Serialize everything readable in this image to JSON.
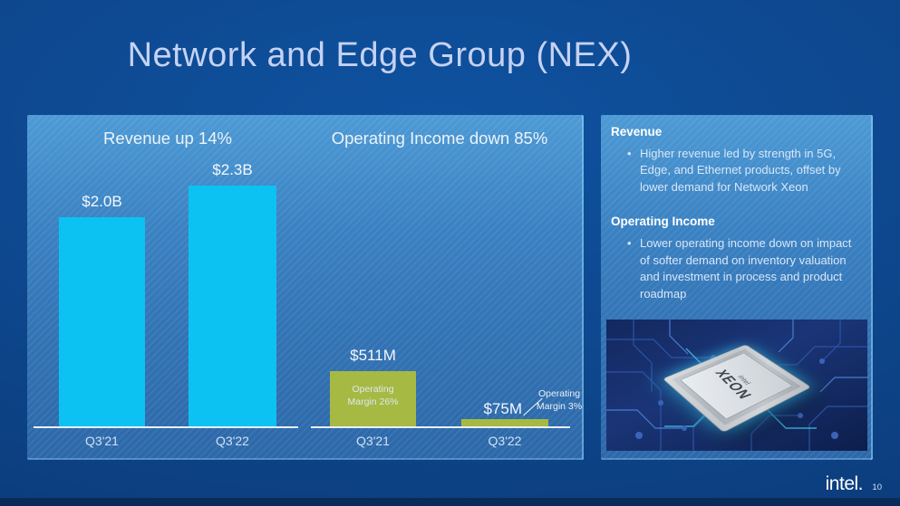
{
  "slide": {
    "title": "Network and Edge Group (NEX)",
    "logo_text": "intel.",
    "page_number": "10"
  },
  "chart_data": [
    {
      "type": "bar",
      "title": "Revenue up 14%",
      "categories": [
        "Q3'21",
        "Q3'22"
      ],
      "values": [
        2.0,
        2.3
      ],
      "unit": "USD billions",
      "value_labels": [
        "$2.0B",
        "$2.3B"
      ],
      "bar_color": "#0cc2f2",
      "ylim": [
        0,
        2.9
      ],
      "grid": false,
      "legend": false
    },
    {
      "type": "bar",
      "title": "Operating Income down 85%",
      "categories": [
        "Q3'21",
        "Q3'22"
      ],
      "values": [
        511,
        75
      ],
      "unit": "USD millions",
      "value_labels": [
        "$511M",
        "$75M"
      ],
      "margin_labels": [
        "Operating Margin 26%",
        "Operating Margin 3%"
      ],
      "bar_color": "#a6b942",
      "ylim": [
        0,
        2530
      ],
      "grid": false,
      "legend": false
    }
  ],
  "notes": {
    "sections": [
      {
        "heading": "Revenue",
        "bullet": "Higher revenue led by strength in 5G, Edge, and Ethernet products, offset by lower demand for Network Xeon"
      },
      {
        "heading": "Operating Income",
        "bullet": "Lower operating income down on impact of softer demand on inventory valuation and investment in process and product roadmap"
      }
    ],
    "image": {
      "description": "Intel Xeon processor on blue circuit board",
      "chip_brand": "intel",
      "chip_product": "XEON"
    }
  },
  "colors": {
    "revenue_bar": "#0cc2f2",
    "opinc_bar": "#a6b942",
    "panel_top": "#4d9ad5",
    "panel_bottom": "#2d68a9",
    "background": "#0d4488",
    "title_text": "#c5d2f3"
  }
}
